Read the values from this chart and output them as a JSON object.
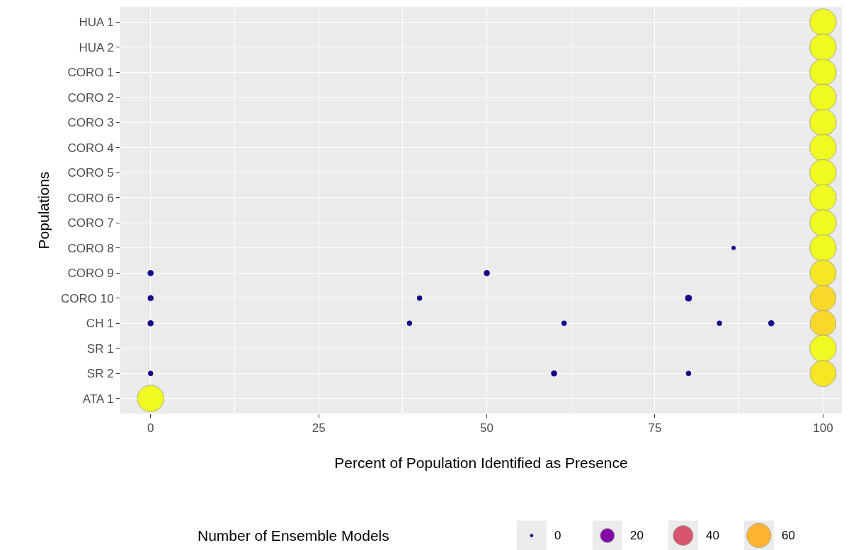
{
  "chart_data": {
    "type": "bubble",
    "orientation": "horizontal",
    "xlabel": "Percent of Population Identified as Presence",
    "ylabel": "Populations",
    "legend_title": "Number of Ensemble Models",
    "categories": [
      "HUA 1",
      "HUA 2",
      "CORO 1",
      "CORO 2",
      "CORO 3",
      "CORO 4",
      "CORO 5",
      "CORO 6",
      "CORO 7",
      "CORO 8",
      "CORO 9",
      "CORO 10",
      "CH 1",
      "SR 1",
      "SR 2",
      "ATA 1"
    ],
    "xlim": [
      -4.5,
      102.8
    ],
    "xticks": [
      0,
      25,
      50,
      75,
      100
    ],
    "grid": true,
    "size_legend": [
      0,
      20,
      40,
      60
    ],
    "series": [
      {
        "values": [
          100,
          100,
          100,
          100,
          100,
          100,
          100,
          100,
          100,
          100,
          100,
          100,
          100,
          100,
          100,
          0
        ],
        "sizes": [
          72,
          72,
          72,
          72,
          72,
          72,
          72,
          72,
          72,
          72,
          70,
          68,
          68,
          72,
          70,
          72
        ],
        "colors": [
          "#f0f921",
          "#f0f921",
          "#f0f921",
          "#f0f921",
          "#f0f921",
          "#f0f921",
          "#f0f921",
          "#f0f921",
          "#f0f921",
          "#f0f921",
          "#f5e626",
          "#f8d82a",
          "#f8d82a",
          "#f0f921",
          "#f5e626",
          "#f0f921"
        ]
      },
      {
        "values": [
          null,
          null,
          null,
          null,
          null,
          null,
          null,
          null,
          null,
          86.7,
          0,
          0,
          0,
          null,
          0,
          null
        ],
        "sizes": [
          null,
          null,
          null,
          null,
          null,
          null,
          null,
          null,
          null,
          1,
          3,
          3,
          3,
          null,
          2,
          null
        ],
        "colors": [
          null,
          null,
          null,
          null,
          null,
          null,
          null,
          null,
          null,
          "#0d0887",
          "#17068b",
          "#17068b",
          "#17068b",
          null,
          "#130789",
          null
        ]
      },
      {
        "values": [
          null,
          null,
          null,
          null,
          null,
          null,
          null,
          null,
          null,
          null,
          50,
          40,
          38.5,
          null,
          60,
          null
        ],
        "sizes": [
          null,
          null,
          null,
          null,
          null,
          null,
          null,
          null,
          null,
          null,
          3,
          2,
          2,
          null,
          3,
          null
        ],
        "colors": [
          null,
          null,
          null,
          null,
          null,
          null,
          null,
          null,
          null,
          null,
          "#17068b",
          "#130789",
          "#130789",
          null,
          "#17068b",
          null
        ]
      },
      {
        "values": [
          null,
          null,
          null,
          null,
          null,
          null,
          null,
          null,
          null,
          null,
          null,
          80,
          61.5,
          null,
          80,
          null
        ],
        "sizes": [
          null,
          null,
          null,
          null,
          null,
          null,
          null,
          null,
          null,
          null,
          null,
          4,
          2,
          null,
          2,
          null
        ],
        "colors": [
          null,
          null,
          null,
          null,
          null,
          null,
          null,
          null,
          null,
          null,
          null,
          "#1c068d",
          "#130789",
          null,
          "#130789",
          null
        ]
      },
      {
        "values": [
          null,
          null,
          null,
          null,
          null,
          null,
          null,
          null,
          null,
          null,
          null,
          null,
          84.6,
          null,
          null,
          null
        ],
        "sizes": [
          null,
          null,
          null,
          null,
          null,
          null,
          null,
          null,
          null,
          null,
          null,
          null,
          2,
          null,
          null,
          null
        ],
        "colors": [
          null,
          null,
          null,
          null,
          null,
          null,
          null,
          null,
          null,
          null,
          null,
          null,
          "#130789",
          null,
          null,
          null
        ]
      },
      {
        "values": [
          null,
          null,
          null,
          null,
          null,
          null,
          null,
          null,
          null,
          null,
          null,
          null,
          92.3,
          null,
          null,
          null
        ],
        "sizes": [
          null,
          null,
          null,
          null,
          null,
          null,
          null,
          null,
          null,
          null,
          null,
          null,
          3,
          null,
          null,
          null
        ],
        "colors": [
          null,
          null,
          null,
          null,
          null,
          null,
          null,
          null,
          null,
          null,
          null,
          null,
          "#17068b",
          null,
          null,
          null
        ]
      }
    ]
  }
}
